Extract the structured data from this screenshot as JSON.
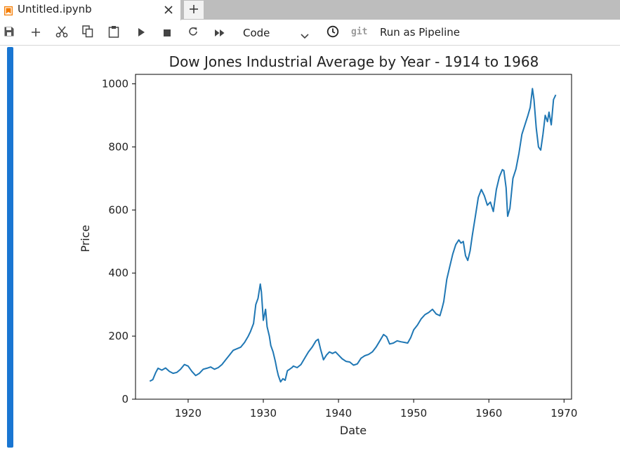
{
  "tab": {
    "title": "Untitled.ipynb",
    "icon": "notebook-icon",
    "close_icon": "close-icon",
    "new_tab_icon": "plus-icon"
  },
  "toolbar": {
    "buttons": [
      {
        "name": "save-button",
        "icon": "save-icon"
      },
      {
        "name": "insert-cell-button",
        "icon": "plus-icon"
      },
      {
        "name": "cut-button",
        "icon": "scissors-icon"
      },
      {
        "name": "copy-button",
        "icon": "copy-icon"
      },
      {
        "name": "paste-button",
        "icon": "clipboard-icon"
      },
      {
        "name": "run-button",
        "icon": "play-icon"
      },
      {
        "name": "stop-button",
        "icon": "stop-icon"
      },
      {
        "name": "restart-button",
        "icon": "restart-icon"
      },
      {
        "name": "run-all-button",
        "icon": "fast-forward-icon"
      }
    ],
    "cell_type": "Code",
    "git_label": "git",
    "pipeline_label": "Run as Pipeline"
  },
  "colors": {
    "accent": "#1976d2",
    "line": "#1f77b4",
    "tab_icon": "#f57c00"
  },
  "chart_data": {
    "type": "line",
    "title": "Dow Jones Industrial Average by Year - 1914 to 1968",
    "xlabel": "Date",
    "ylabel": "Price",
    "xlim": [
      1913,
      1971
    ],
    "ylim": [
      0,
      1030
    ],
    "xticks": [
      1920,
      1930,
      1940,
      1950,
      1960,
      1970
    ],
    "yticks": [
      0,
      200,
      400,
      600,
      800,
      1000
    ],
    "grid": false,
    "series": [
      {
        "x": [
          1914.9,
          1915.3,
          1915.7,
          1916.0,
          1916.5,
          1917.0,
          1917.5,
          1918.0,
          1918.5,
          1919.0,
          1919.5,
          1920.0,
          1920.5,
          1921.0,
          1921.5,
          1922.0,
          1922.5,
          1923.0,
          1923.5,
          1924.0,
          1924.5,
          1925.0,
          1925.5,
          1926.0,
          1926.5,
          1927.0,
          1927.5,
          1928.0,
          1928.3,
          1928.7,
          1929.0,
          1929.3,
          1929.6,
          1929.75,
          1930.0,
          1930.3,
          1930.5,
          1930.8,
          1931.0,
          1931.3,
          1931.6,
          1931.8,
          1932.0,
          1932.3,
          1932.6,
          1932.9,
          1933.2,
          1933.5,
          1933.8,
          1934.0,
          1934.5,
          1935.0,
          1935.5,
          1936.0,
          1936.5,
          1937.0,
          1937.3,
          1937.6,
          1938.0,
          1938.4,
          1938.8,
          1939.2,
          1939.6,
          1940.0,
          1940.5,
          1941.0,
          1941.5,
          1942.0,
          1942.5,
          1943.0,
          1943.5,
          1944.0,
          1944.5,
          1945.0,
          1945.5,
          1946.0,
          1946.4,
          1946.8,
          1947.3,
          1947.8,
          1948.3,
          1948.8,
          1949.2,
          1949.6,
          1950.0,
          1950.5,
          1951.0,
          1951.5,
          1952.0,
          1952.5,
          1953.0,
          1953.5,
          1953.8,
          1954.0,
          1954.4,
          1954.8,
          1955.2,
          1955.6,
          1956.0,
          1956.3,
          1956.6,
          1956.9,
          1957.2,
          1957.5,
          1957.8,
          1958.2,
          1958.6,
          1959.0,
          1959.4,
          1959.8,
          1960.2,
          1960.6,
          1961.0,
          1961.4,
          1961.8,
          1962.0,
          1962.3,
          1962.5,
          1962.8,
          1963.2,
          1963.6,
          1964.0,
          1964.4,
          1964.8,
          1965.2,
          1965.5,
          1965.8,
          1966.0,
          1966.3,
          1966.6,
          1966.9,
          1967.2,
          1967.5,
          1967.8,
          1968.0,
          1968.3,
          1968.6,
          1968.9
        ],
        "y": [
          57,
          62,
          85,
          98,
          92,
          99,
          88,
          82,
          85,
          95,
          110,
          105,
          88,
          75,
          82,
          95,
          98,
          102,
          95,
          100,
          110,
          125,
          140,
          155,
          160,
          165,
          180,
          200,
          215,
          240,
          300,
          320,
          365,
          340,
          250,
          285,
          230,
          200,
          170,
          150,
          120,
          95,
          75,
          55,
          65,
          60,
          90,
          95,
          100,
          105,
          100,
          110,
          130,
          150,
          165,
          185,
          190,
          160,
          125,
          140,
          150,
          145,
          150,
          140,
          128,
          120,
          118,
          108,
          112,
          130,
          138,
          142,
          150,
          165,
          185,
          205,
          198,
          175,
          178,
          185,
          182,
          180,
          178,
          195,
          220,
          235,
          255,
          268,
          275,
          285,
          270,
          265,
          290,
          310,
          380,
          420,
          460,
          490,
          505,
          495,
          500,
          455,
          440,
          470,
          520,
          580,
          640,
          665,
          645,
          615,
          625,
          595,
          665,
          705,
          728,
          725,
          670,
          580,
          605,
          700,
          730,
          780,
          840,
          870,
          900,
          925,
          985,
          950,
          860,
          800,
          790,
          840,
          900,
          880,
          910,
          870,
          950,
          965
        ]
      }
    ]
  }
}
